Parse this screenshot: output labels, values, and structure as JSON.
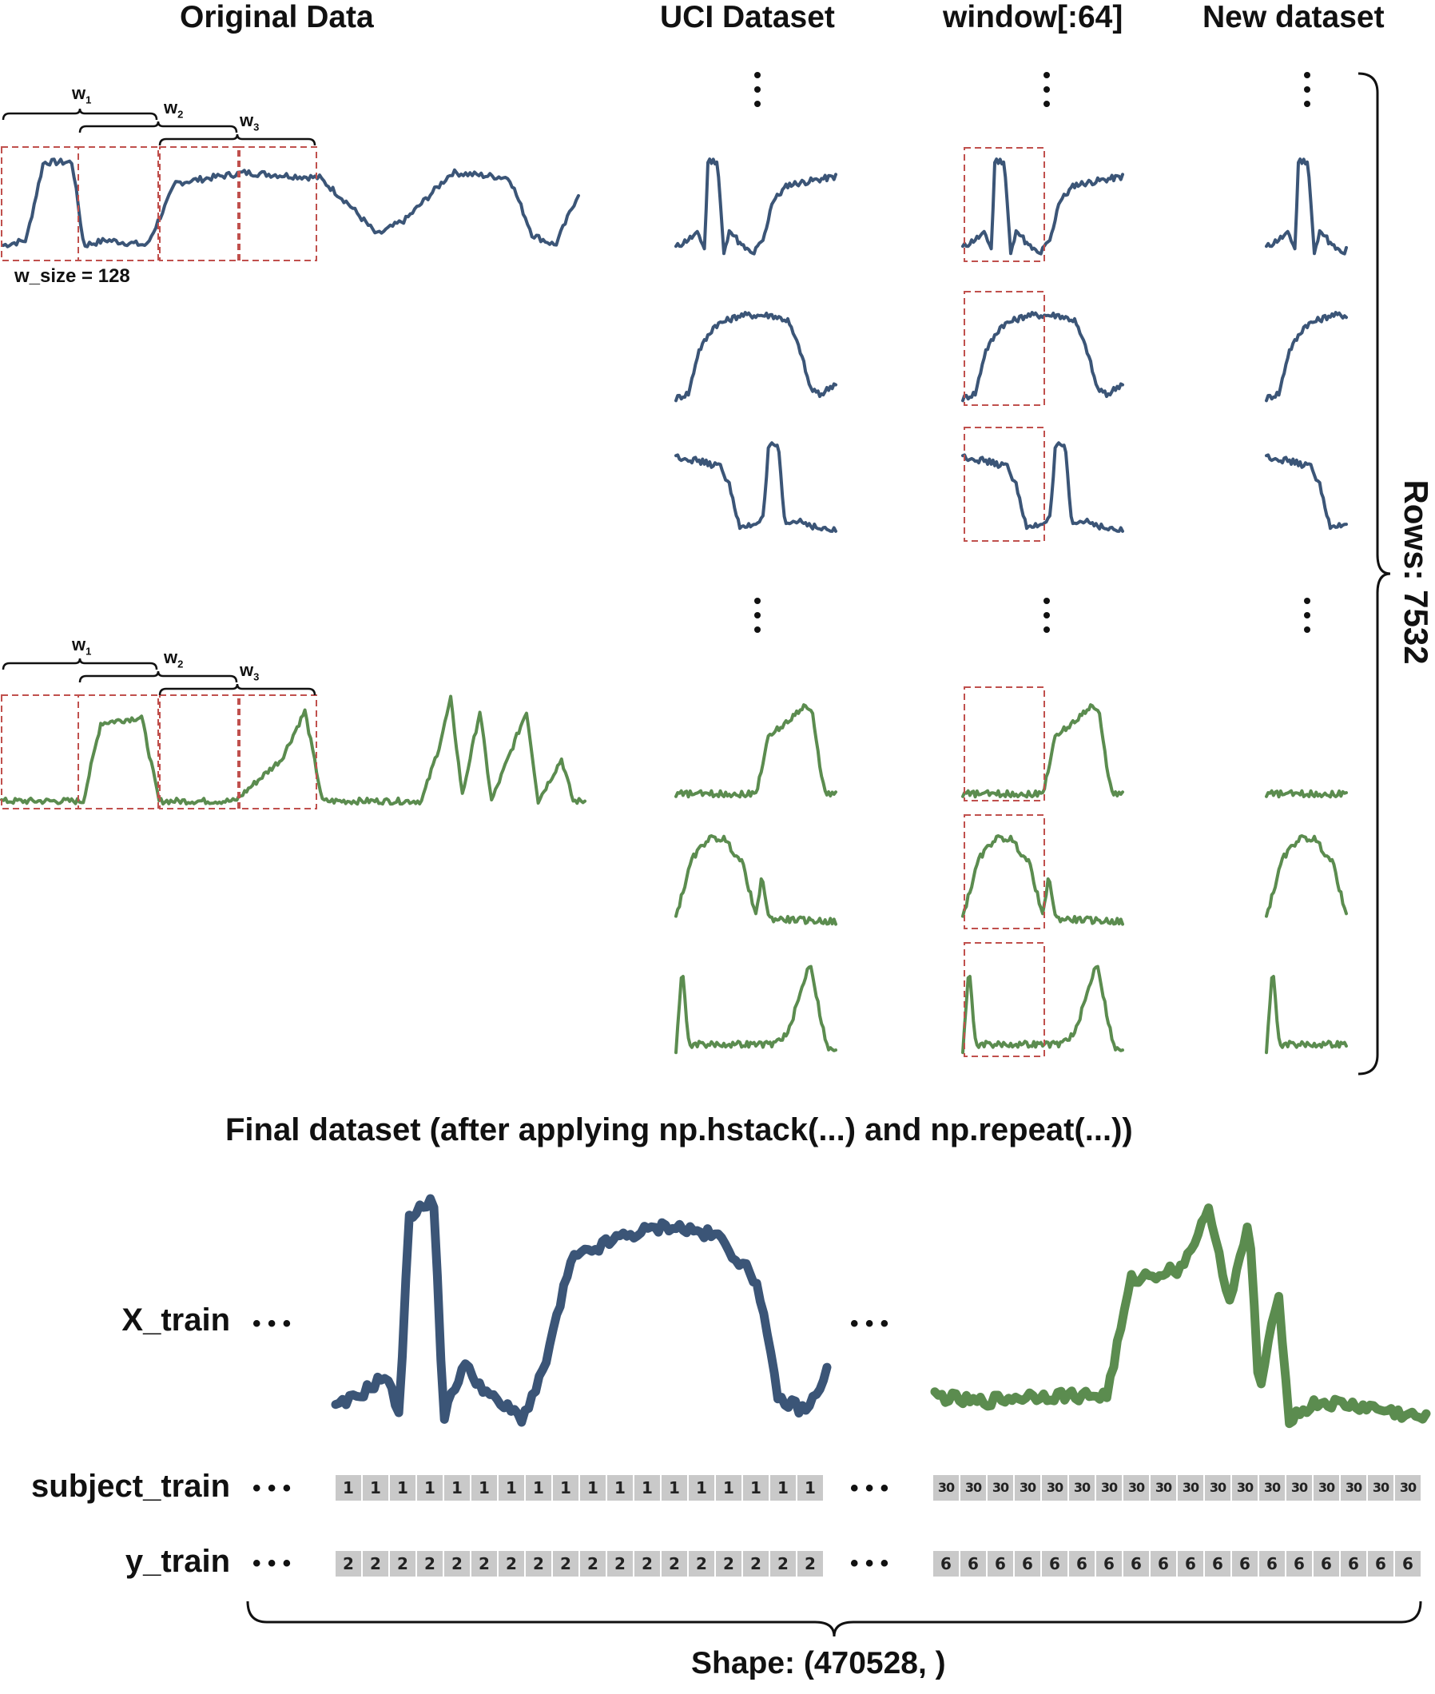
{
  "headers": {
    "original": "Original Data",
    "uci": "UCI Dataset",
    "window": "window[:64]",
    "new": "New dataset"
  },
  "windows": {
    "w1": "w",
    "w2": "w",
    "w3": "w",
    "sub1": "1",
    "sub2": "2",
    "sub3": "3",
    "size_label": "w_size = 128"
  },
  "rows_label": "Rows: 7532",
  "final_title": "Final dataset (after applying np.hstack(...) and np.repeat(...))",
  "row_labels": {
    "x": "X_train",
    "subject": "subject_train",
    "y": "y_train"
  },
  "ellipsis": "• • •",
  "subject_cells": {
    "left": [
      "1",
      "1",
      "1",
      "1",
      "1",
      "1",
      "1",
      "1",
      "1",
      "1",
      "1",
      "1",
      "1",
      "1",
      "1",
      "1",
      "1",
      "1"
    ],
    "right": [
      "30",
      "30",
      "30",
      "30",
      "30",
      "30",
      "30",
      "30",
      "30",
      "30",
      "30",
      "30",
      "30",
      "30",
      "30",
      "30",
      "30",
      "30"
    ]
  },
  "y_cells": {
    "left": [
      "2",
      "2",
      "2",
      "2",
      "2",
      "2",
      "2",
      "2",
      "2",
      "2",
      "2",
      "2",
      "2",
      "2",
      "2",
      "2",
      "2",
      "2"
    ],
    "right": [
      "6",
      "6",
      "6",
      "6",
      "6",
      "6",
      "6",
      "6",
      "6",
      "6",
      "6",
      "6",
      "6",
      "6",
      "6",
      "6",
      "6",
      "6"
    ]
  },
  "shape_label": "Shape: (470528, )",
  "colors": {
    "blue": "#3b5577",
    "green": "#5b8c4f",
    "dash": "#c0504d",
    "cell": "#c9c9c9"
  }
}
